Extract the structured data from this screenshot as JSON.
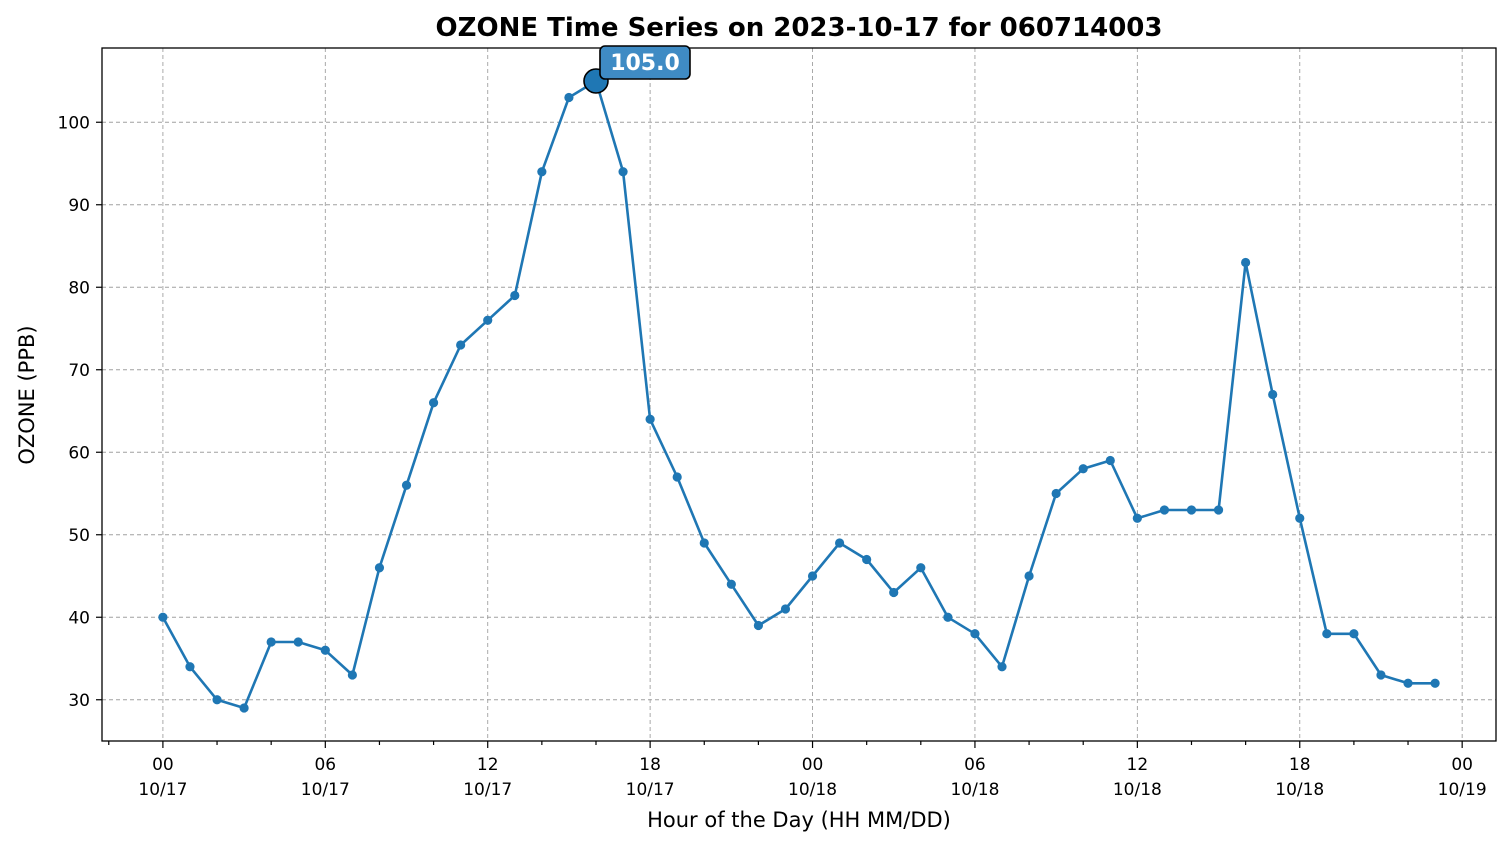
{
  "chart_data": {
    "type": "line",
    "title": "OZONE Time Series on 2023-10-17 for 060714003",
    "xlabel": "Hour of the Day (HH MM/DD)",
    "ylabel": "OZONE (PPB)",
    "x_start": "2023-10-17 00:00",
    "x_step_hours": 1,
    "x_range": [
      "2023-10-16 21:45",
      "2023-10-19 01:15"
    ],
    "ylim": [
      25,
      109
    ],
    "yticks": [
      30,
      40,
      50,
      60,
      70,
      80,
      90,
      100
    ],
    "xticks": [
      {
        "hour": 0,
        "label": [
          "00",
          "10/17"
        ]
      },
      {
        "hour": 6,
        "label": [
          "06",
          "10/17"
        ]
      },
      {
        "hour": 12,
        "label": [
          "12",
          "10/17"
        ]
      },
      {
        "hour": 18,
        "label": [
          "18",
          "10/17"
        ]
      },
      {
        "hour": 24,
        "label": [
          "00",
          "10/18"
        ]
      },
      {
        "hour": 30,
        "label": [
          "06",
          "10/18"
        ]
      },
      {
        "hour": 36,
        "label": [
          "12",
          "10/18"
        ]
      },
      {
        "hour": 42,
        "label": [
          "18",
          "10/18"
        ]
      },
      {
        "hour": 48,
        "label": [
          "00",
          "10/19"
        ]
      }
    ],
    "grid": true,
    "color": "#1f77b4",
    "values": [
      40,
      34,
      30,
      29,
      37,
      37,
      36,
      33,
      46,
      56,
      66,
      73,
      76,
      79,
      94,
      103,
      105,
      94,
      64,
      57,
      49,
      44,
      39,
      41,
      45,
      49,
      47,
      43,
      46,
      40,
      38,
      34,
      45,
      55,
      58,
      59,
      52,
      53,
      53,
      53,
      83,
      67,
      52,
      38,
      38,
      33,
      32,
      32
    ],
    "peak": {
      "hour": 16,
      "value": 105,
      "label": "105.0"
    }
  }
}
